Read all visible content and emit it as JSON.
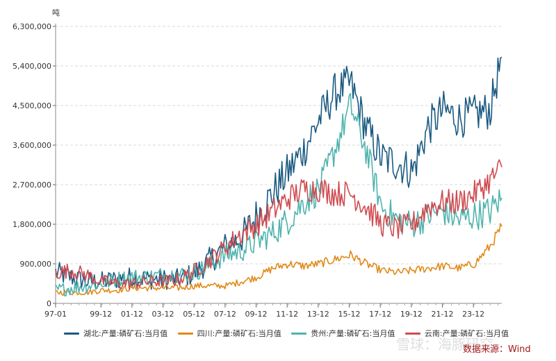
{
  "chart_data": {
    "type": "line",
    "unit_label": "吨",
    "y_ticks": [
      "6,300,000",
      "5,400,000",
      "4,500,000",
      "3,600,000",
      "2,700,000",
      "1,800,000",
      "900,000",
      "0"
    ],
    "y_tick_values": [
      6300000,
      5400000,
      4500000,
      3600000,
      2700000,
      1800000,
      900000,
      0
    ],
    "ylim": [
      0,
      6300000
    ],
    "x_ticks": [
      "97-01",
      "99-12",
      "01-12",
      "03-12",
      "05-12",
      "07-12",
      "09-12",
      "11-12",
      "13-12",
      "15-12",
      "17-12",
      "19-12",
      "21-12",
      "23-12"
    ],
    "x_tick_years": [
      1997.0,
      1999.92,
      2001.92,
      2003.92,
      2005.92,
      2007.92,
      2009.92,
      2011.92,
      2013.92,
      2015.92,
      2017.92,
      2019.92,
      2021.92,
      2023.92
    ],
    "xlim": [
      1997.0,
      2025.75
    ],
    "series": [
      {
        "name": "湖北:产量:磷矿石:当月值",
        "color": "#1b5a82",
        "x": [
          1997,
          1998,
          1999,
          2000,
          2001,
          2002,
          2003,
          2004,
          2005,
          2006,
          2007,
          2008,
          2009,
          2010,
          2011,
          2012,
          2013,
          2014,
          2015,
          2016,
          2017,
          2018,
          2019,
          2020,
          2021,
          2022,
          2023,
          2024,
          2025,
          2025.75
        ],
        "y": [
          700000,
          600000,
          500000,
          500000,
          550000,
          600000,
          550000,
          550000,
          550000,
          700000,
          1000000,
          1300000,
          1500000,
          2000000,
          2500000,
          3000000,
          3500000,
          4200000,
          4800000,
          5000000,
          4000000,
          3300000,
          3200000,
          3000000,
          4000000,
          4400000,
          4200000,
          4300000,
          4400000,
          5600000
        ],
        "volatility": 450000
      },
      {
        "name": "四川:产量:磷矿石:当月值",
        "color": "#e08a18",
        "x": [
          1997,
          1998,
          1999,
          2000,
          2001,
          2002,
          2003,
          2004,
          2005,
          2006,
          2007,
          2008,
          2009,
          2010,
          2011,
          2012,
          2013,
          2014,
          2015,
          2016,
          2017,
          2018,
          2019,
          2020,
          2021,
          2022,
          2023,
          2024,
          2025,
          2025.75
        ],
        "y": [
          250000,
          250000,
          250000,
          300000,
          300000,
          350000,
          350000,
          350000,
          350000,
          400000,
          400000,
          400000,
          500000,
          600000,
          800000,
          900000,
          850000,
          900000,
          1000000,
          1100000,
          900000,
          750000,
          700000,
          750000,
          800000,
          850000,
          800000,
          900000,
          1300000,
          1750000
        ],
        "volatility": 150000
      },
      {
        "name": "贵州:产量:磷矿石:当月值",
        "color": "#4fb3ad",
        "x": [
          1997,
          1998,
          1999,
          2000,
          2001,
          2002,
          2003,
          2004,
          2005,
          2006,
          2007,
          2008,
          2009,
          2010,
          2011,
          2012,
          2013,
          2014,
          2015,
          2016,
          2017,
          2018,
          2019,
          2020,
          2021,
          2022,
          2023,
          2024,
          2025,
          2025.75
        ],
        "y": [
          300000,
          350000,
          400000,
          450000,
          550000,
          600000,
          600000,
          650000,
          650000,
          700000,
          900000,
          1100000,
          1200000,
          1400000,
          1600000,
          1900000,
          2300000,
          2600000,
          3500000,
          4500000,
          3500000,
          2200000,
          1900000,
          1800000,
          2000000,
          2100000,
          1900000,
          2000000,
          2100000,
          2400000
        ],
        "volatility": 350000
      },
      {
        "name": "云南:产量:磷矿石:当月值",
        "color": "#cf4b50",
        "x": [
          1997,
          1998,
          1999,
          2000,
          2001,
          2002,
          2003,
          2004,
          2005,
          2006,
          2007,
          2008,
          2009,
          2010,
          2011,
          2012,
          2013,
          2014,
          2015,
          2016,
          2017,
          2018,
          2019,
          2020,
          2021,
          2022,
          2023,
          2024,
          2025,
          2025.75
        ],
        "y": [
          700000,
          750000,
          650000,
          500000,
          450000,
          450000,
          500000,
          500000,
          550000,
          750000,
          1000000,
          1300000,
          1600000,
          1800000,
          2100000,
          2400000,
          2600000,
          2600000,
          2500000,
          2500000,
          2200000,
          1800000,
          1700000,
          1800000,
          2200000,
          2300000,
          2300000,
          2500000,
          2800000,
          3100000
        ],
        "volatility": 300000
      }
    ]
  },
  "legend": [
    {
      "label": "湖北:产量:磷矿石:当月值",
      "color": "#1b5a82"
    },
    {
      "label": "四川:产量:磷矿石:当月值",
      "color": "#e08a18"
    },
    {
      "label": "贵州:产量:磷矿石:当月值",
      "color": "#4fb3ad"
    },
    {
      "label": "云南:产量:磷矿石:当月值",
      "color": "#cf4b50"
    }
  ],
  "source_text": "数据来源：Wind",
  "watermark_text": "雪球：海豚研究"
}
